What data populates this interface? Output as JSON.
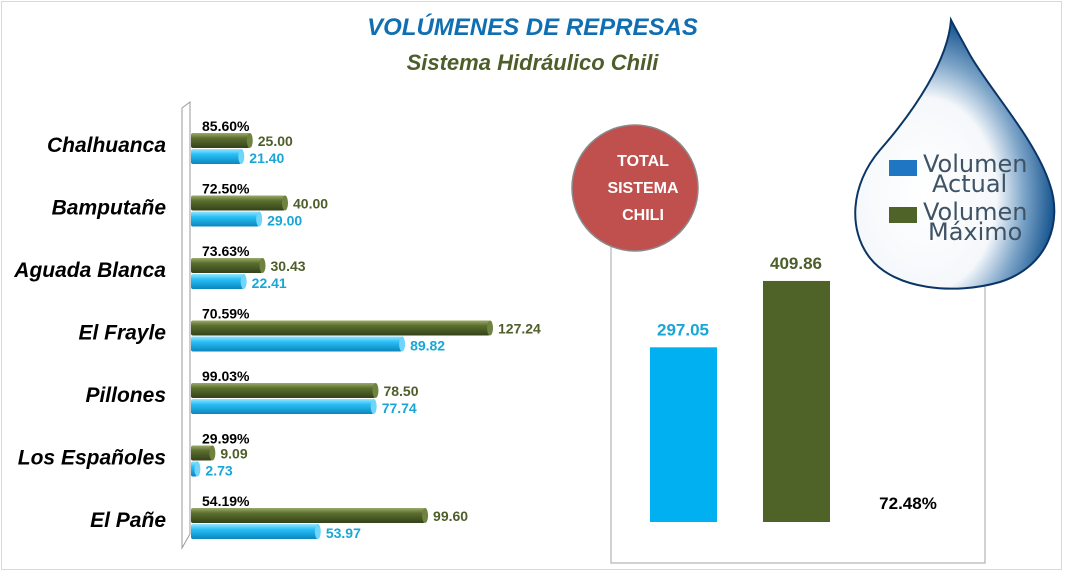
{
  "title": "VOLÚMENES DE REPRESAS",
  "subtitle": "Sistema Hidráulico Chili",
  "colors": {
    "actual": "#00b0f0",
    "maximo": "#4f6228",
    "title": "#0f6fb2",
    "subtitle": "#4e5e2a",
    "circle": "#c0504d"
  },
  "legend": [
    {
      "line1": "Volumen",
      "line2": "Actual",
      "color": "#1f77c4"
    },
    {
      "line1": "Volumen",
      "line2": "Máximo",
      "color": "#4f6228"
    }
  ],
  "chart_data": [
    {
      "type": "bar",
      "orientation": "horizontal",
      "categories": [
        "Chalhuanca",
        "Bamputañe",
        "Aguada Blanca",
        "El Frayle",
        "Pillones",
        "Los Españoles",
        "El Pañe"
      ],
      "series": [
        {
          "name": "Volumen Máximo",
          "values": [
            25.0,
            40.0,
            30.43,
            127.24,
            78.5,
            9.09,
            99.6
          ],
          "labels": [
            "25.00",
            "40.00",
            "30.43",
            "127.24",
            "78.50",
            "9.09",
            "99.60"
          ]
        },
        {
          "name": "Volumen Actual",
          "values": [
            21.4,
            29.0,
            22.41,
            89.82,
            77.74,
            2.73,
            53.97
          ],
          "labels": [
            "21.40",
            "29.00",
            "22.41",
            "89.82",
            "77.74",
            "2.73",
            "53.97"
          ]
        }
      ],
      "percentages": [
        "85.60%",
        "72.50%",
        "73.63%",
        "70.59%",
        "99.03%",
        "29.99%",
        "54.19%"
      ],
      "xlim": [
        0,
        130
      ],
      "grid": false
    },
    {
      "type": "bar",
      "title": "TOTAL SISTEMA CHILI",
      "categories": [
        "Volumen Actual",
        "Volumen Máximo"
      ],
      "values": [
        297.05,
        409.86
      ],
      "labels": [
        "297.05",
        "409.86"
      ],
      "percentage": "72.48%",
      "ylim": [
        0,
        420
      ],
      "grid": false
    }
  ]
}
